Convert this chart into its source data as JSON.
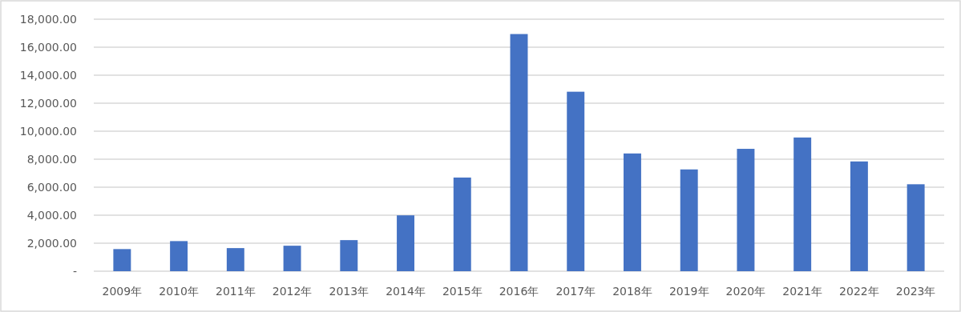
{
  "chart_data": {
    "type": "bar",
    "categories": [
      "2009年",
      "2010年",
      "2011年",
      "2012年",
      "2013年",
      "2014年",
      "2015年",
      "2016年",
      "2017年",
      "2018年",
      "2019年",
      "2020年",
      "2021年",
      "2022年",
      "2023年"
    ],
    "values": [
      1580,
      2150,
      1650,
      1820,
      2220,
      3990,
      6690,
      16940,
      12820,
      8410,
      7270,
      8740,
      9550,
      7840,
      6210
    ],
    "color": "#4472c4",
    "ylim": [
      0,
      18000
    ],
    "yticks": [
      {
        "value": 0,
        "label": "-"
      },
      {
        "value": 2000,
        "label": "2,000.00"
      },
      {
        "value": 4000,
        "label": "4,000.00"
      },
      {
        "value": 6000,
        "label": "6,000.00"
      },
      {
        "value": 8000,
        "label": "8,000.00"
      },
      {
        "value": 10000,
        "label": "10,000.00"
      },
      {
        "value": 12000,
        "label": "12,000.00"
      },
      {
        "value": 14000,
        "label": "14,000.00"
      },
      {
        "value": 16000,
        "label": "16,000.00"
      },
      {
        "value": 18000,
        "label": "18,000.00"
      }
    ],
    "grid": "y",
    "legend": false
  }
}
